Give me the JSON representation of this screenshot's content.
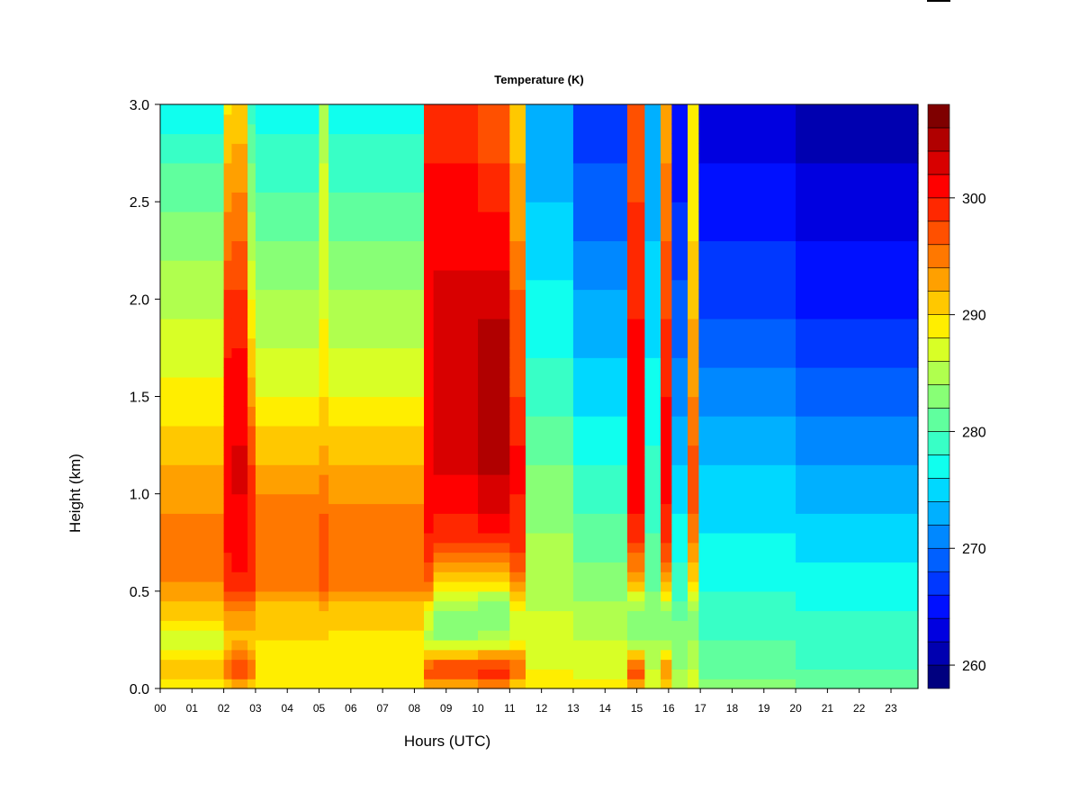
{
  "chart_data": {
    "type": "heatmap",
    "title": "Temperature (K)",
    "xlabel": "Hours (UTC)",
    "ylabel": "Height (km)",
    "xlim": [
      0,
      23.85
    ],
    "ylim": [
      0,
      3.0
    ],
    "x_ticks": [
      "00",
      "01",
      "02",
      "03",
      "04",
      "05",
      "06",
      "07",
      "08",
      "09",
      "10",
      "11",
      "12",
      "13",
      "14",
      "15",
      "16",
      "17",
      "18",
      "19",
      "20",
      "21",
      "22",
      "23"
    ],
    "y_ticks": [
      "0.0",
      "0.5",
      "1.0",
      "1.5",
      "2.0",
      "2.5",
      "3.0"
    ],
    "colorbar": {
      "range": [
        258,
        308
      ],
      "ticks": [
        "260",
        "270",
        "280",
        "290",
        "300"
      ],
      "levels": 25,
      "colors": [
        "#00007f",
        "#0000b0",
        "#0000e0",
        "#0010ff",
        "#0038ff",
        "#0060ff",
        "#0088ff",
        "#00b0ff",
        "#00d8ff",
        "#10ffee",
        "#38ffc6",
        "#60ff9e",
        "#88ff76",
        "#b0ff4e",
        "#d8ff26",
        "#ffee00",
        "#ffc800",
        "#ffa000",
        "#ff7800",
        "#ff5000",
        "#ff2800",
        "#ff0000",
        "#d80000",
        "#b00000",
        "#7f0000"
      ]
    },
    "height_levels_km": [
      0.0,
      0.1,
      0.25,
      0.4,
      0.5,
      0.65,
      0.8,
      1.0,
      1.25,
      1.5,
      1.9,
      2.3,
      2.7,
      3.0
    ],
    "time_columns": [
      {
        "x0": 0.0,
        "x1": 2.0,
        "t": [
          287.5,
          291,
          286.5,
          291,
          293.5,
          294.5,
          294.5,
          293.5,
          291,
          288.5,
          286,
          283.5,
          280,
          276
        ]
      },
      {
        "x0": 2.0,
        "x1": 2.25,
        "t": [
          290,
          296,
          291,
          293,
          298,
          299.5,
          300.5,
          301.5,
          301.5,
          300.5,
          299.5,
          295,
          292,
          289.5
        ]
      },
      {
        "x0": 2.25,
        "x1": 2.75,
        "t": [
          291,
          298,
          291,
          294,
          299,
          300.5,
          301.5,
          302,
          302,
          301,
          299.5,
          296,
          293,
          290
        ]
      },
      {
        "x0": 2.75,
        "x1": 3.0,
        "t": [
          290,
          296,
          291,
          293,
          298,
          299,
          299,
          298.5,
          297.5,
          293,
          289,
          285,
          282,
          279
        ]
      },
      {
        "x0": 3.0,
        "x1": 5.0,
        "t": [
          289,
          289,
          290,
          291,
          294,
          295,
          295,
          294,
          291,
          288,
          285,
          282,
          279,
          277
        ]
      },
      {
        "x0": 5.0,
        "x1": 5.3,
        "t": [
          289,
          289,
          290,
          292,
          296,
          297,
          297,
          295,
          292,
          290,
          288,
          287,
          286,
          285
        ]
      },
      {
        "x0": 5.3,
        "x1": 8.3,
        "t": [
          289,
          289,
          289.5,
          291,
          294,
          295,
          295,
          293.5,
          291,
          288,
          285,
          282,
          279,
          277
        ]
      },
      {
        "x0": 8.3,
        "x1": 8.6,
        "t": [
          291,
          298,
          285,
          288,
          295,
          298,
          300,
          301,
          301,
          300,
          300,
          300,
          300,
          299
        ]
      },
      {
        "x0": 8.6,
        "x1": 10.0,
        "t": [
          291,
          299,
          284,
          283,
          287,
          293,
          299,
          301.5,
          303,
          303,
          304,
          301,
          300,
          298
        ]
      },
      {
        "x0": 10.0,
        "x1": 11.0,
        "t": [
          292,
          300,
          285,
          282,
          287,
          294,
          300.5,
          303,
          305,
          304,
          304,
          301,
          298,
          296
        ]
      },
      {
        "x0": 11.0,
        "x1": 11.5,
        "t": [
          290,
          297,
          287,
          288,
          293,
          297,
          299.5,
          300,
          300,
          298,
          297,
          294,
          292,
          290
        ]
      },
      {
        "x0": 11.5,
        "x1": 13.0,
        "t": [
          289,
          288,
          287,
          286,
          285,
          284.5,
          284,
          283,
          281,
          279,
          277,
          275,
          273,
          272
        ]
      },
      {
        "x0": 13.0,
        "x1": 14.7,
        "t": [
          289,
          287,
          286,
          285,
          283,
          282,
          281,
          279,
          277,
          275,
          273,
          270,
          268,
          266
        ]
      },
      {
        "x0": 14.7,
        "x1": 15.25,
        "t": [
          292,
          298,
          283,
          284,
          289,
          295,
          299,
          301,
          302,
          301,
          300,
          299,
          297,
          296
        ]
      },
      {
        "x0": 15.25,
        "x1": 15.75,
        "t": [
          287,
          286,
          284,
          283,
          282,
          281,
          280,
          279,
          278,
          277,
          275,
          274,
          273,
          272
        ]
      },
      {
        "x0": 15.75,
        "x1": 16.1,
        "t": [
          290,
          294,
          283,
          284,
          291,
          296,
          299,
          300.5,
          301,
          300,
          298,
          296,
          294,
          292
        ]
      },
      {
        "x0": 16.1,
        "x1": 16.6,
        "t": [
          285,
          284,
          283,
          281,
          279,
          278,
          277,
          275,
          273,
          271,
          269,
          267,
          265,
          264
        ]
      },
      {
        "x0": 16.6,
        "x1": 16.95,
        "t": [
          287,
          286,
          284,
          283,
          289,
          292,
          295,
          297,
          296,
          294,
          292,
          290,
          289,
          288
        ]
      },
      {
        "x0": 16.95,
        "x1": 20.0,
        "t": [
          283,
          281,
          280,
          279,
          278,
          277,
          276,
          275,
          273,
          271,
          268,
          266,
          264,
          263
        ]
      },
      {
        "x0": 20.0,
        "x1": 23.85,
        "t": [
          282,
          280,
          279,
          278,
          277,
          276,
          275,
          273,
          271,
          269,
          266,
          264,
          262,
          260
        ]
      }
    ]
  }
}
